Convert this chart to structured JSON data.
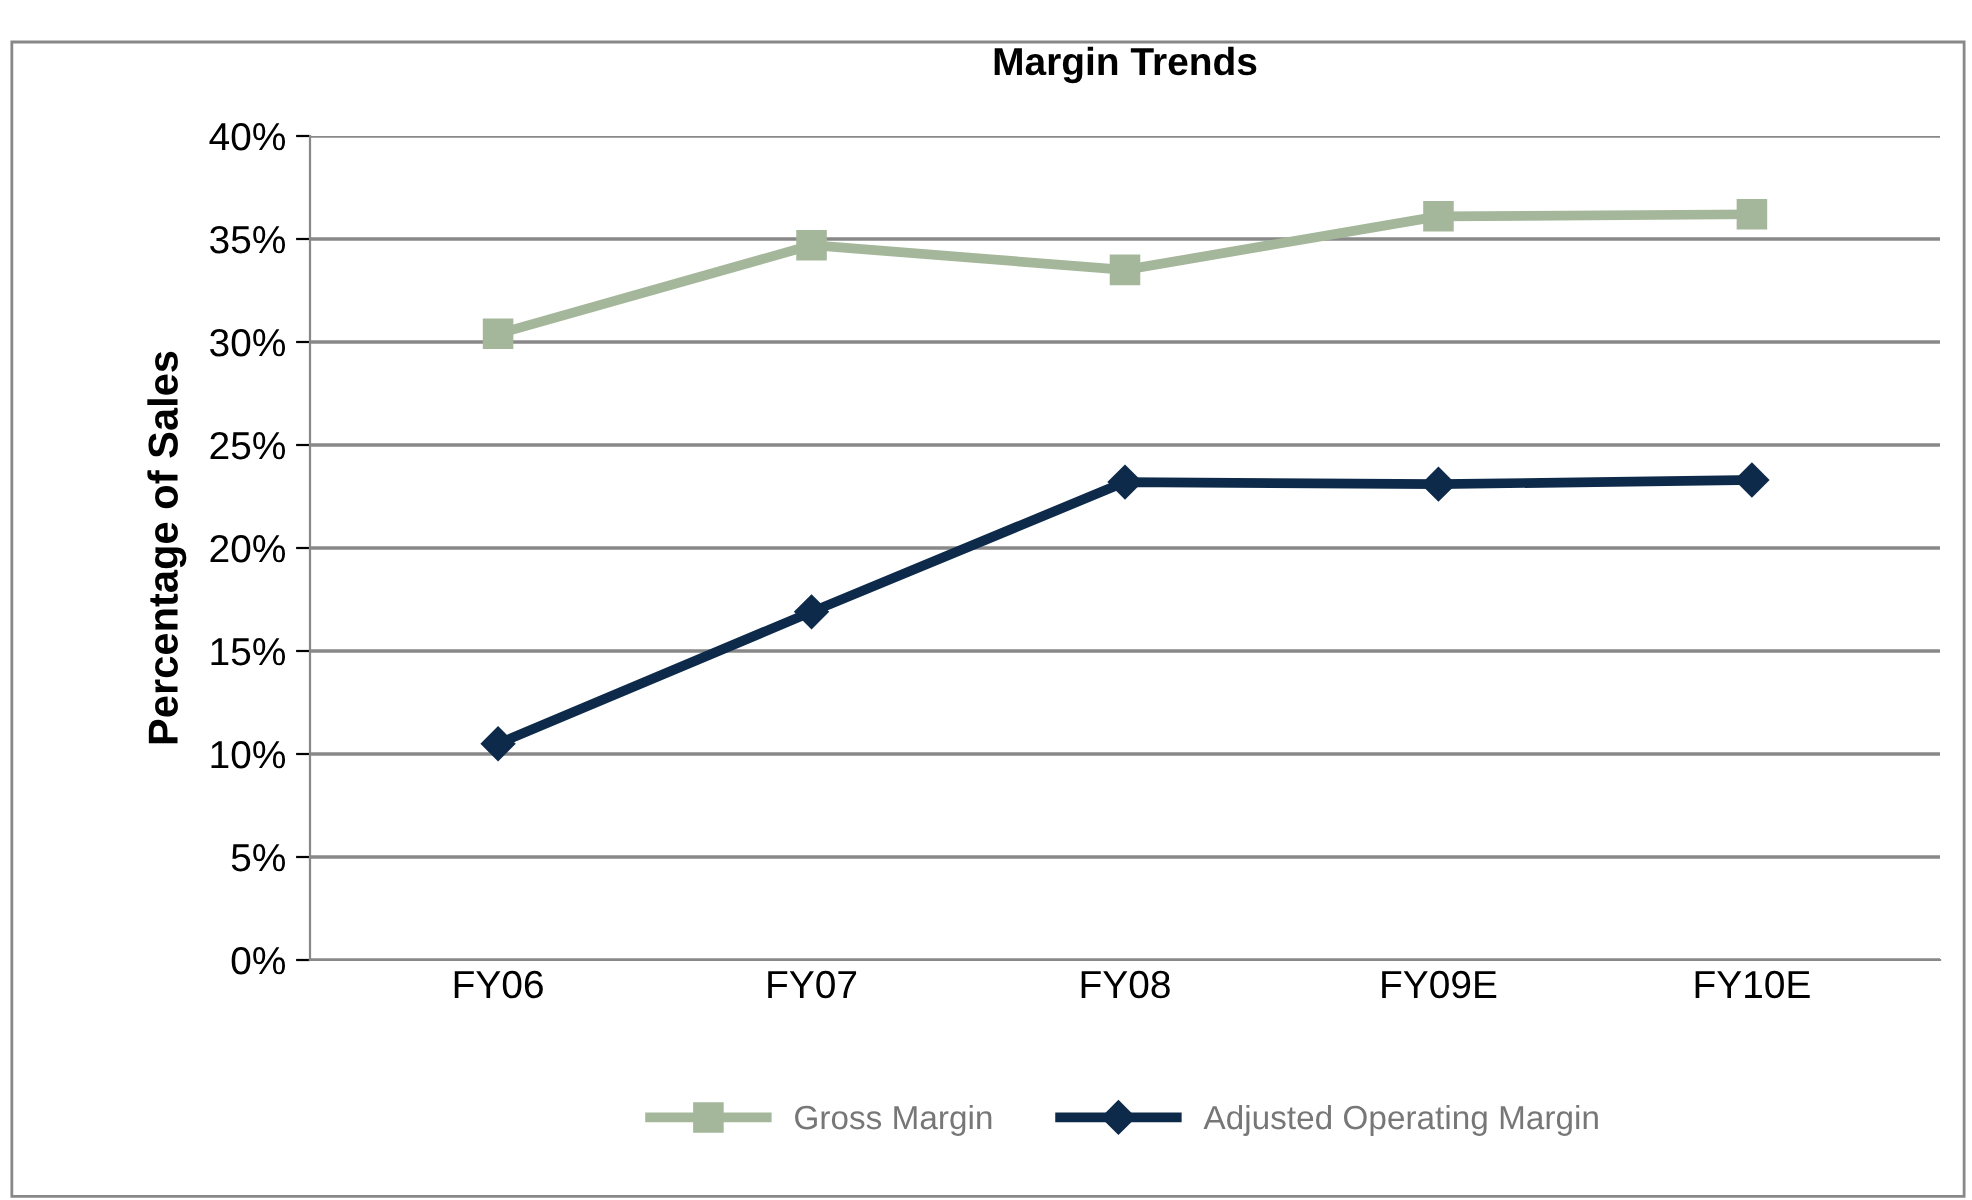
{
  "chart_data": {
    "type": "line",
    "title": "Margin Trends",
    "ylabel": "Percentage of Sales",
    "categories": [
      "FY06",
      "FY07",
      "FY08",
      "FY09E",
      "FY10E"
    ],
    "series": [
      {
        "name": "Gross Margin",
        "color": "#a5b79b",
        "marker": "square",
        "values": [
          30.4,
          34.7,
          33.5,
          36.1,
          36.2
        ]
      },
      {
        "name": "Adjusted Operating Margin",
        "color": "#0e2a4a",
        "marker": "diamond",
        "values": [
          10.5,
          16.9,
          23.2,
          23.1,
          23.3
        ]
      }
    ],
    "ylim": [
      0,
      40
    ],
    "yticks": [
      {
        "value": 0,
        "label": "0%"
      },
      {
        "value": 5,
        "label": "5%"
      },
      {
        "value": 10,
        "label": "10%"
      },
      {
        "value": 15,
        "label": "15%"
      },
      {
        "value": 20,
        "label": "20%"
      },
      {
        "value": 25,
        "label": "25%"
      },
      {
        "value": 30,
        "label": "30%"
      },
      {
        "value": 35,
        "label": "35%"
      },
      {
        "value": 40,
        "label": "40%"
      }
    ],
    "grid": "y",
    "legend": "bottom",
    "line_style": "solid"
  }
}
